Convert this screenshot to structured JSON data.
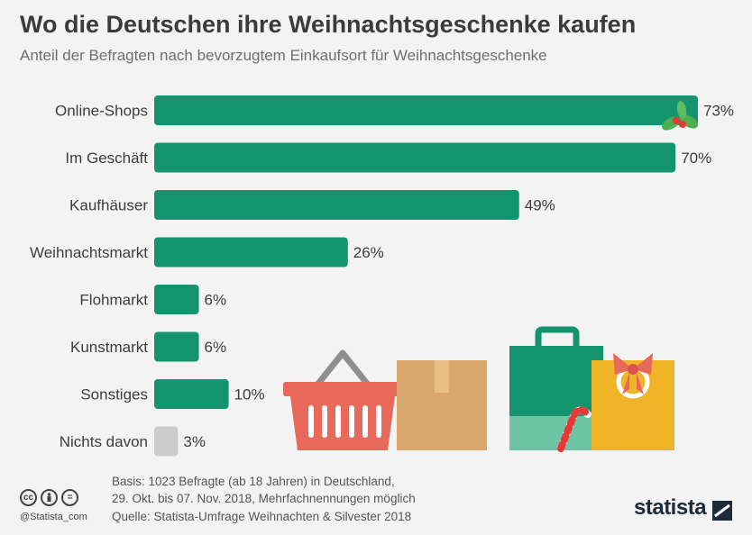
{
  "header": {
    "title": "Wo die Deutschen ihre Weihnachtsgeschenke kaufen",
    "subtitle": "Anteil der Befragten nach bevorzugtem Einkaufsort für Weihnachtsgeschenke"
  },
  "chart_data": {
    "type": "bar",
    "orientation": "horizontal",
    "categories": [
      "Online-Shops",
      "Im Geschäft",
      "Kaufhäuser",
      "Weihnachtsmarkt",
      "Flohmarkt",
      "Kunstmarkt",
      "Sonstiges",
      "Nichts davon"
    ],
    "values": [
      73,
      70,
      49,
      26,
      6,
      6,
      10,
      3
    ],
    "value_labels": [
      "73%",
      "70%",
      "49%",
      "26%",
      "6%",
      "6%",
      "10%",
      "3%"
    ],
    "unit": "%",
    "colors": [
      "#13946f",
      "#13946f",
      "#13946f",
      "#13946f",
      "#13946f",
      "#13946f",
      "#13946f",
      "#cccccc"
    ],
    "xlim": [
      0,
      73
    ],
    "grid": false,
    "legend": "none"
  },
  "footer": {
    "basis_line1": "Basis: 1023 Befragte (ab 18 Jahren) in Deutschland,",
    "basis_line2": "29. Okt. bis 07. Nov. 2018, Mehrfachnennungen möglich",
    "source": "Quelle: Statista-Umfrage Weihnachten & Silvester 2018",
    "handle": "@Statista_com",
    "license_icons": [
      "cc",
      "by",
      "="
    ],
    "brand": "statista"
  },
  "colors": {
    "bar": "#13946f",
    "bar_muted": "#cccccc",
    "background": "#f3f3f3",
    "basket": "#e8685a",
    "box": "#d9a66b",
    "bag_green": "#13946f",
    "bag_yellow": "#f0b429"
  }
}
